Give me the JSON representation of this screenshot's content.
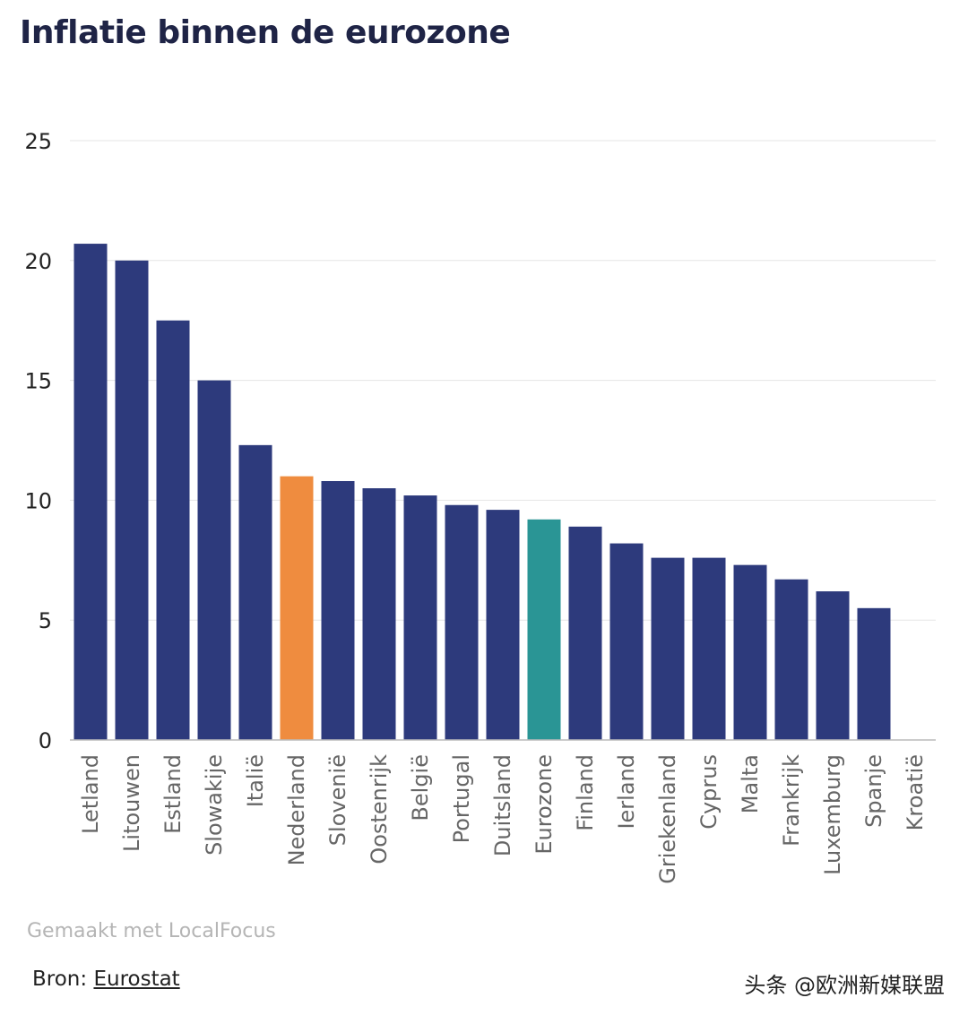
{
  "title": "Inflatie binnen de eurozone",
  "chart_data": {
    "type": "bar",
    "title": "Inflatie binnen de eurozone",
    "xlabel": "",
    "ylabel": "",
    "ylim": [
      0,
      25
    ],
    "yticks": [
      0,
      5,
      10,
      15,
      20,
      25
    ],
    "grid": true,
    "categories": [
      "Letland",
      "Litouwen",
      "Estland",
      "Slowakije",
      "Italië",
      "Nederland",
      "Slovenië",
      "Oostenrijk",
      "België",
      "Portugal",
      "Duitsland",
      "Eurozone",
      "Finland",
      "Ierland",
      "Griekenland",
      "Cyprus",
      "Malta",
      "Frankrijk",
      "Luxemburg",
      "Spanje",
      "Kroatië"
    ],
    "values": [
      20.7,
      20.0,
      17.5,
      15.0,
      12.3,
      11.0,
      10.8,
      10.5,
      10.2,
      9.8,
      9.6,
      9.2,
      8.9,
      8.2,
      7.6,
      7.6,
      7.3,
      6.7,
      6.2,
      5.5,
      null
    ],
    "colors": {
      "default": "#2d3a7c",
      "Nederland": "#ef8c3f",
      "Eurozone": "#2a9595"
    }
  },
  "footer": {
    "credit": "Gemaakt met LocalFocus",
    "source_label": "Bron: ",
    "source_link": "Eurostat",
    "watermark": "头条 @欧洲新媒联盟"
  }
}
